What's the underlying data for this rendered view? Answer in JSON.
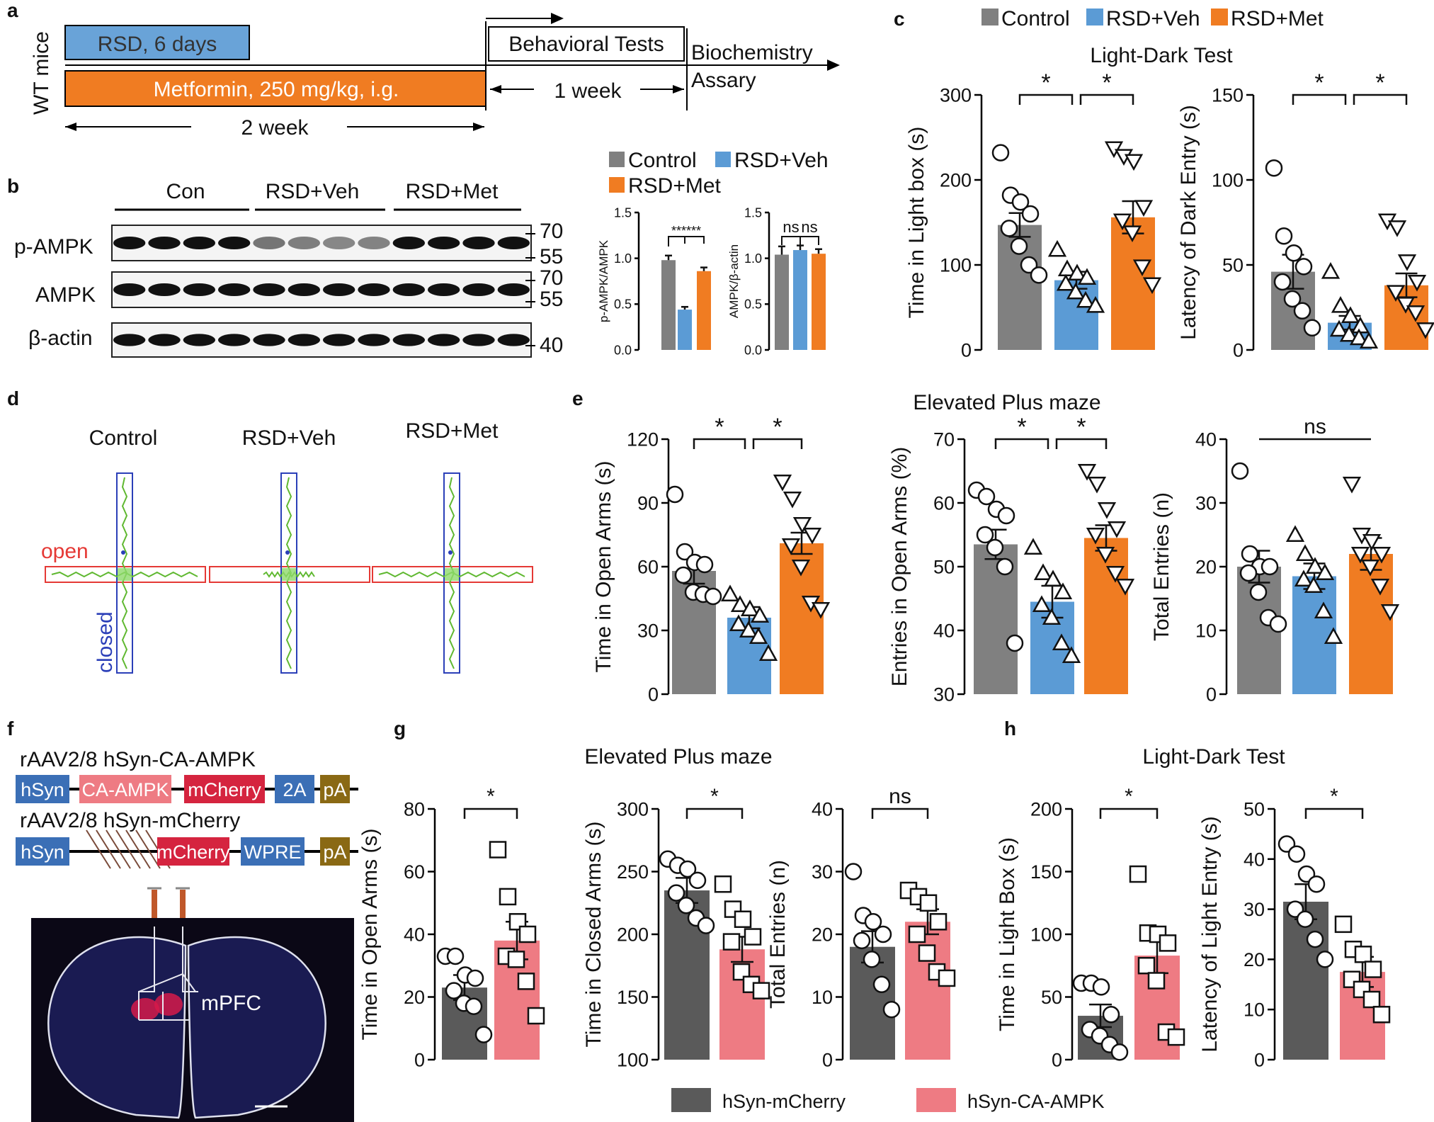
{
  "colors": {
    "control": "#808080",
    "rsd_veh": "#5b9bd5",
    "rsd_met": "#f07c22",
    "mcherry": "#5a5a5a",
    "ca_ampk": "#ee7b83",
    "open_box": "#e53935",
    "closed_box": "#2b3fb8",
    "track": "#5fb830"
  },
  "panels": {
    "a": "a",
    "b": "b",
    "c": "c",
    "d": "d",
    "e": "e",
    "f": "f",
    "g": "g",
    "h": "h"
  },
  "timeline": {
    "wt_mice": "WT mice",
    "rsd": "RSD, 6 days",
    "metformin": "Metformin, 250 mg/kg, i.g.",
    "behavioral": "Behavioral Tests",
    "biochem1": "Biochemistry",
    "biochem2": "Assary",
    "one_week": "1 week",
    "two_week": "2 week"
  },
  "western": {
    "groups": [
      "Con",
      "RSD+Veh",
      "RSD+Met"
    ],
    "rows": [
      "p-AMPK",
      "AMPK",
      "β-actin"
    ],
    "mw": [
      "70",
      "55",
      "70",
      "55",
      "40"
    ]
  },
  "legend3": [
    "Control",
    "RSD+Veh",
    "RSD+Met"
  ],
  "legend2": [
    "hSyn-mCherry",
    "hSyn-CA-AMPK"
  ],
  "maze": {
    "groups": [
      "Control",
      "RSD+Veh",
      "RSD+Met"
    ],
    "open": "open",
    "closed": "closed"
  },
  "constructs": {
    "title1": "rAAV2/8 hSyn-CA-AMPK",
    "title2": "rAAV2/8 hSyn-mCherry",
    "row1": [
      "hSyn",
      "CA-AMPK",
      "mCherry",
      "2A",
      "pA"
    ],
    "row2": [
      "hSyn",
      "mCherry",
      "WPRE",
      "pA"
    ],
    "region": "mPFC"
  },
  "titles": {
    "light_dark": "Light-Dark Test",
    "epm": "Elevated Plus maze"
  },
  "chart_data": [
    {
      "id": "b1",
      "type": "bar",
      "ylabel": "p-AMPK/AMPK",
      "ylim": [
        0,
        1.5
      ],
      "yticks": [
        "0.0",
        "0.5",
        "1.0",
        "1.5"
      ],
      "categories": [
        "Control",
        "RSD+Veh",
        "RSD+Met"
      ],
      "values": [
        0.98,
        0.44,
        0.86
      ],
      "errors": [
        0.05,
        0.03,
        0.04
      ],
      "sig": [
        {
          "label": "******"
        }
      ]
    },
    {
      "id": "b2",
      "type": "bar",
      "ylabel": "AMPK/β-actin",
      "ylim": [
        0,
        1.5
      ],
      "yticks": [
        "0.0",
        "0.5",
        "1.0",
        "1.5"
      ],
      "categories": [
        "Control",
        "RSD+Veh",
        "RSD+Met"
      ],
      "values": [
        1.04,
        1.09,
        1.05
      ],
      "errors": [
        0.09,
        0.05,
        0.05
      ],
      "sig": [
        {
          "label": "ns"
        },
        {
          "label": "ns"
        }
      ]
    },
    {
      "id": "c1",
      "type": "bar",
      "ylabel": "Time in Light box (s)",
      "ylim": [
        0,
        300
      ],
      "yticks": [
        "0",
        "100",
        "200",
        "300"
      ],
      "categories": [
        "Control",
        "RSD+Veh",
        "RSD+Met"
      ],
      "values": [
        147,
        82,
        156
      ],
      "errors": [
        14,
        10,
        19
      ],
      "points": [
        [
          232,
          182,
          174,
          160,
          143,
          122,
          100,
          88
        ],
        [
          118,
          95,
          90,
          85,
          78,
          68,
          58,
          52
        ],
        [
          237,
          228,
          222,
          168,
          152,
          138,
          98,
          77
        ]
      ],
      "sig": [
        {
          "label": "*"
        },
        {
          "label": "*"
        }
      ]
    },
    {
      "id": "c2",
      "type": "bar",
      "ylabel": "Latency of Dark Entry (s)",
      "ylim": [
        0,
        150
      ],
      "yticks": [
        "0",
        "50",
        "100",
        "150"
      ],
      "categories": [
        "Control",
        "RSD+Veh",
        "RSD+Met"
      ],
      "values": [
        46,
        16,
        38
      ],
      "errors": [
        10,
        4,
        7
      ],
      "points": [
        [
          107,
          67,
          57,
          49,
          40,
          30,
          23,
          13
        ],
        [
          46,
          26,
          20,
          14,
          12,
          9,
          7,
          5
        ],
        [
          76,
          72,
          52,
          40,
          34,
          27,
          22,
          12
        ]
      ],
      "sig": [
        {
          "label": "*"
        },
        {
          "label": "*"
        }
      ]
    },
    {
      "id": "e1",
      "type": "bar",
      "ylabel": "Time in Open Arms (s)",
      "ylim": [
        0,
        120
      ],
      "yticks": [
        "0",
        "30",
        "60",
        "90",
        "120"
      ],
      "categories": [
        "Control",
        "RSD+Veh",
        "RSD+Met"
      ],
      "values": [
        58,
        36,
        71
      ],
      "errors": [
        6,
        5,
        5
      ],
      "points": [
        [
          94,
          67,
          62,
          61,
          56,
          48,
          47,
          46
        ],
        [
          47,
          42,
          40,
          37,
          33,
          30,
          27,
          19
        ],
        [
          100,
          92,
          80,
          75,
          70,
          60,
          43,
          40
        ]
      ],
      "sig": [
        {
          "label": "*"
        },
        {
          "label": "*"
        }
      ]
    },
    {
      "id": "e2",
      "type": "bar",
      "ylabel": "Entries in Open Arms (%)",
      "ylim": [
        30,
        70
      ],
      "yticks": [
        "30",
        "40",
        "50",
        "60",
        "70"
      ],
      "categories": [
        "Control",
        "RSD+Veh",
        "RSD+Met"
      ],
      "values": [
        53.5,
        44.5,
        54.5
      ],
      "errors": [
        2.3,
        2.5,
        2
      ],
      "points": [
        [
          62,
          61,
          59,
          58,
          55,
          53,
          50,
          38
        ],
        [
          53,
          49,
          48,
          46,
          44,
          42,
          38,
          36
        ],
        [
          65,
          63,
          59,
          56,
          55,
          52,
          49,
          47
        ]
      ],
      "sig": [
        {
          "label": "*"
        },
        {
          "label": "*"
        }
      ]
    },
    {
      "id": "e3",
      "type": "bar",
      "ylabel": "Total Entries (n)",
      "ylim": [
        0,
        40
      ],
      "yticks": [
        "0",
        "10",
        "20",
        "30",
        "40"
      ],
      "categories": [
        "Control",
        "RSD+Veh",
        "RSD+Met"
      ],
      "values": [
        20,
        18.5,
        22
      ],
      "errors": [
        2.5,
        2,
        2.5
      ],
      "points": [
        [
          35,
          22,
          20,
          20,
          19,
          16,
          12,
          11
        ],
        [
          25,
          22,
          20,
          19,
          18,
          17,
          13,
          9
        ],
        [
          33,
          25,
          24,
          22,
          22,
          20,
          17,
          13
        ]
      ],
      "sig": [
        {
          "label": "ns",
          "span": "all"
        }
      ]
    },
    {
      "id": "g1",
      "type": "bar",
      "ylabel": "Time in Open Arms (s)",
      "ylim": [
        0,
        80
      ],
      "yticks": [
        "0",
        "20",
        "40",
        "60",
        "80"
      ],
      "categories": [
        "hSyn-mCherry",
        "hSyn-CA-AMPK"
      ],
      "values": [
        23,
        38
      ],
      "errors": [
        4,
        6
      ],
      "points": [
        [
          33,
          33,
          27,
          26,
          22,
          18,
          17,
          8
        ],
        [
          67,
          52,
          44,
          40,
          33,
          32,
          25,
          14
        ]
      ],
      "sig": [
        {
          "label": "*"
        }
      ]
    },
    {
      "id": "g2",
      "type": "bar",
      "ylabel": "Time in Closed Arms (s)",
      "ylim": [
        100,
        300
      ],
      "yticks": [
        "100",
        "150",
        "200",
        "250",
        "300"
      ],
      "categories": [
        "hSyn-mCherry",
        "hSyn-CA-AMPK"
      ],
      "values": [
        235,
        188
      ],
      "errors": [
        10,
        10
      ],
      "points": [
        [
          260,
          255,
          252,
          243,
          233,
          223,
          213,
          207
        ],
        [
          240,
          220,
          212,
          198,
          194,
          170,
          160,
          155
        ]
      ],
      "sig": [
        {
          "label": "*"
        }
      ]
    },
    {
      "id": "g3",
      "type": "bar",
      "ylabel": "Total Entries (n)",
      "ylim": [
        0,
        40
      ],
      "yticks": [
        "0",
        "10",
        "20",
        "30",
        "40"
      ],
      "categories": [
        "hSyn-mCherry",
        "hSyn-CA-AMPK"
      ],
      "values": [
        18,
        22
      ],
      "errors": [
        2.5,
        2
      ],
      "points": [
        [
          30,
          23,
          22,
          20,
          19,
          16,
          12,
          8
        ],
        [
          27,
          26,
          25,
          22,
          20,
          17,
          14,
          13
        ]
      ],
      "sig": [
        {
          "label": "ns"
        }
      ]
    },
    {
      "id": "h1",
      "type": "bar",
      "ylabel": "Time in Light Box (s)",
      "ylim": [
        0,
        200
      ],
      "yticks": [
        "0",
        "50",
        "100",
        "150",
        "200"
      ],
      "categories": [
        "hSyn-mCherry",
        "hSyn-CA-AMPK"
      ],
      "values": [
        35,
        83
      ],
      "errors": [
        9,
        14
      ],
      "points": [
        [
          61,
          61,
          58,
          36,
          24,
          19,
          12,
          6
        ],
        [
          148,
          101,
          100,
          93,
          75,
          63,
          22,
          18
        ]
      ],
      "sig": [
        {
          "label": "*"
        }
      ]
    },
    {
      "id": "h2",
      "type": "bar",
      "ylabel": "Latency of Light Entry (s)",
      "ylim": [
        0,
        50
      ],
      "yticks": [
        "0",
        "10",
        "20",
        "30",
        "40",
        "50"
      ],
      "categories": [
        "hSyn-mCherry",
        "hSyn-CA-AMPK"
      ],
      "values": [
        31.5,
        17.5
      ],
      "errors": [
        3.5,
        3
      ],
      "points": [
        [
          43,
          41,
          37,
          35,
          30,
          28,
          24,
          20
        ],
        [
          27,
          22,
          21,
          18,
          16,
          14,
          12,
          9
        ]
      ],
      "sig": [
        {
          "label": "*"
        }
      ]
    }
  ]
}
